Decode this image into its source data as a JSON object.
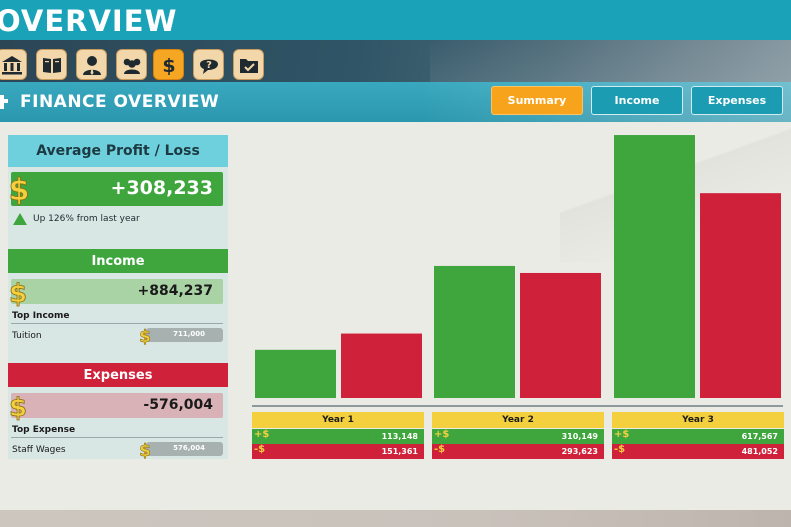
{
  "top_title": "OVERVIEW",
  "categories": [
    {
      "name": "bank-icon",
      "active": false
    },
    {
      "name": "book-icon",
      "active": false
    },
    {
      "name": "person-icon",
      "active": false
    },
    {
      "name": "group-icon",
      "active": false
    },
    {
      "name": "dollar-icon",
      "active": true
    },
    {
      "name": "question-icon",
      "active": false
    },
    {
      "name": "folder-icon",
      "active": false
    }
  ],
  "header": {
    "title": "FINANCE OVERVIEW",
    "tabs": [
      {
        "label": "Summary",
        "active": true
      },
      {
        "label": "Income",
        "active": false
      },
      {
        "label": "Expenses",
        "active": false
      }
    ]
  },
  "profit": {
    "title": "Average Profit / Loss",
    "value": "+308,233",
    "trend": "Up 126% from last year"
  },
  "income": {
    "title": "Income",
    "value": "+884,237",
    "top_label": "Top Income",
    "top_item": "Tuition",
    "top_value": "711,000"
  },
  "expenses": {
    "title": "Expenses",
    "value": "-576,004",
    "top_label": "Top Expense",
    "top_item": "Staff Wages",
    "top_value": "576,004"
  },
  "colors": {
    "income": "#3fa63e",
    "expense": "#d0213a",
    "accent": "#f7a41c",
    "header": "#2b97ae"
  },
  "chart_data": {
    "type": "bar",
    "categories": [
      "Year 1",
      "Year 2",
      "Year 3"
    ],
    "series": [
      {
        "values": [
          113148,
          310149,
          617567
        ],
        "color": "#3fa63e"
      },
      {
        "values": [
          151361,
          293623,
          481052
        ],
        "color": "#d0213a"
      }
    ],
    "income_labels": [
      "113,148",
      "310,149",
      "617,567"
    ],
    "expense_labels": [
      "151,361",
      "293,623",
      "481,052"
    ],
    "income_prefix": "+$",
    "expense_prefix": "-$",
    "ylim": [
      0,
      620000
    ],
    "grid": false
  }
}
